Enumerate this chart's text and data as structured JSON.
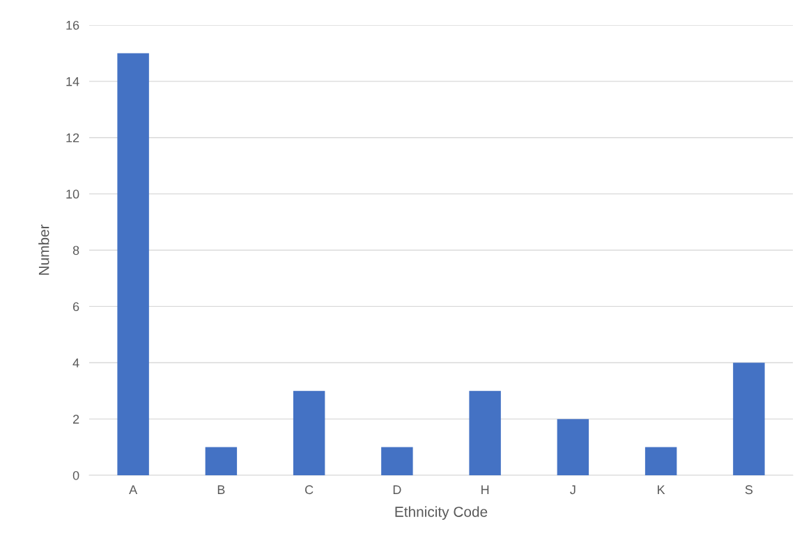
{
  "chart_data": {
    "type": "bar",
    "xlabel": "Ethnicity Code",
    "ylabel": "Number",
    "categories": [
      "A",
      "B",
      "C",
      "D",
      "H",
      "J",
      "K",
      "S"
    ],
    "values": [
      15,
      1,
      3,
      1,
      3,
      2,
      1,
      4
    ],
    "color": "#4472c4",
    "ylim": [
      0,
      16
    ],
    "yticks": [
      0,
      2,
      4,
      6,
      8,
      10,
      12,
      14,
      16
    ],
    "grid": "y"
  }
}
